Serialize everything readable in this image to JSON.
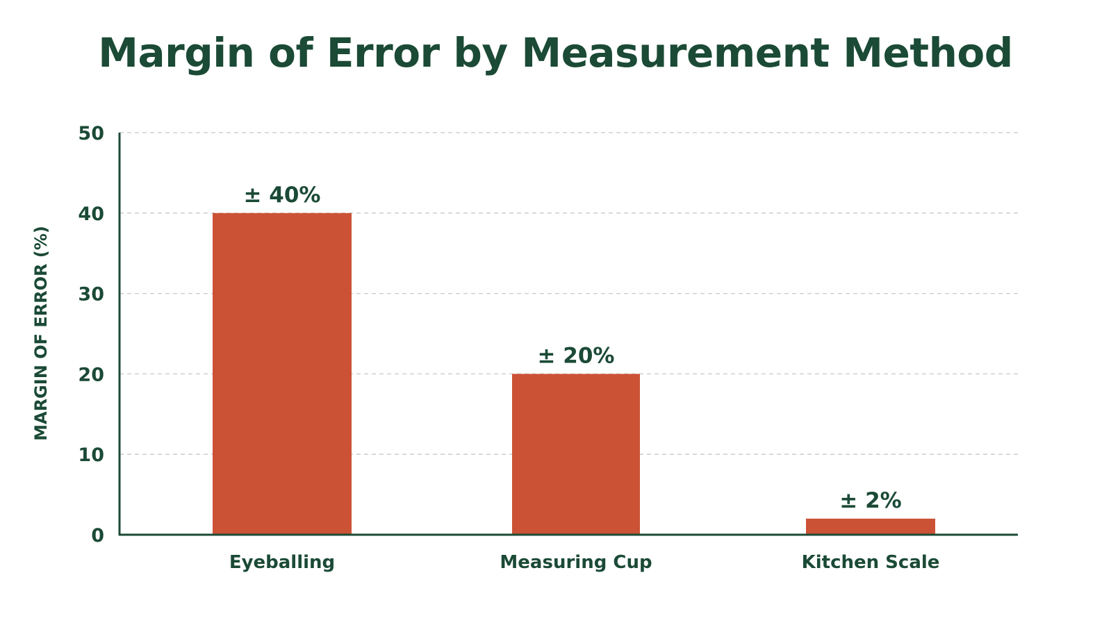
{
  "colors": {
    "title": "#1b4a36",
    "bar": "#cc5235",
    "axis": "#1b4a36",
    "grid": "#c8c8c8",
    "text": "#1b4a36"
  },
  "chart_data": {
    "type": "bar",
    "title": "Margin of Error by Measurement Method",
    "xlabel": "",
    "ylabel": "MARGIN OF ERROR (%)",
    "categories": [
      "Eyeballing",
      "Measuring Cup",
      "Kitchen Scale"
    ],
    "values": [
      40,
      20,
      2
    ],
    "data_labels": [
      "± 40%",
      "± 20%",
      "± 2%"
    ],
    "ylim": [
      0,
      50
    ],
    "yticks": [
      0,
      10,
      20,
      30,
      40,
      50
    ],
    "grid": true,
    "grid_style": "dashed",
    "legend": "none"
  }
}
